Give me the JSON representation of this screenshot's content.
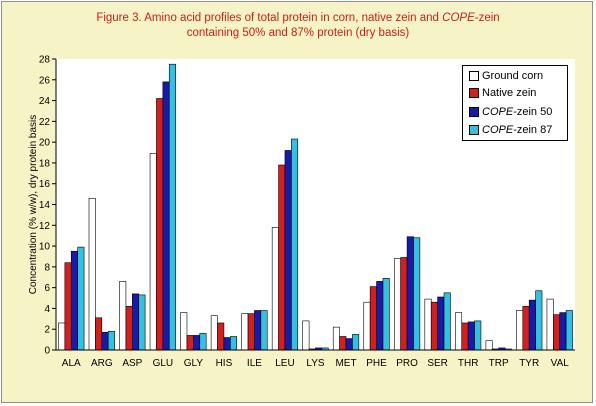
{
  "chart_data": {
    "type": "bar",
    "title_line1": "Figure 3. Amino acid profiles of total protein in corn, native zein and COPE-zein",
    "title_line2": "containing 50% and 87% protein (dry basis)",
    "ylabel": "Concentration (% w/w), dry protein basis",
    "xlabel": "",
    "ylim": [
      0,
      28
    ],
    "yticks": [
      "0",
      "2",
      "4",
      "6",
      "8",
      "10",
      "12",
      "14",
      "16",
      "18",
      "20",
      "22",
      "24",
      "26",
      "28"
    ],
    "grid": false,
    "legend_position": "top-right",
    "categories": [
      "ALA",
      "ARG",
      "ASP",
      "GLU",
      "GLY",
      "HIS",
      "ILE",
      "LEU",
      "LYS",
      "MET",
      "PHE",
      "PRO",
      "SER",
      "THR",
      "TRP",
      "TYR",
      "VAL"
    ],
    "series": [
      {
        "name": "Ground corn",
        "color": "#ffffff",
        "values": [
          2.6,
          14.6,
          6.6,
          18.9,
          3.6,
          3.3,
          3.5,
          11.8,
          2.8,
          2.2,
          4.6,
          8.8,
          4.9,
          3.6,
          0.9,
          3.8,
          4.9
        ]
      },
      {
        "name": "Native zein",
        "color": "#d21f1f",
        "values": [
          8.4,
          3.1,
          4.2,
          24.2,
          1.4,
          2.6,
          3.5,
          17.8,
          0.1,
          1.3,
          6.1,
          8.9,
          4.6,
          2.6,
          0.1,
          4.2,
          3.4
        ]
      },
      {
        "name": "COPE-zein 50",
        "color": "#1a1aa8",
        "values": [
          9.5,
          1.7,
          5.4,
          25.8,
          1.4,
          1.2,
          3.8,
          19.2,
          0.2,
          1.1,
          6.6,
          10.9,
          5.1,
          2.7,
          0.2,
          4.8,
          3.6
        ]
      },
      {
        "name": "COPE-zein 87",
        "color": "#35bfe0",
        "values": [
          9.9,
          1.8,
          5.3,
          27.5,
          1.6,
          1.3,
          3.8,
          20.3,
          0.2,
          1.5,
          6.9,
          10.8,
          5.5,
          2.8,
          0.1,
          5.7,
          3.8
        ]
      }
    ]
  }
}
